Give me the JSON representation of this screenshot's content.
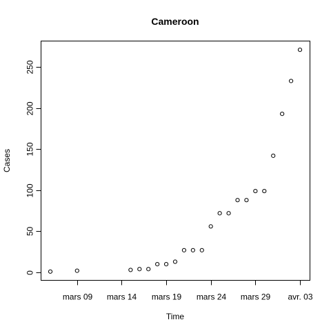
{
  "chart_data": {
    "type": "scatter",
    "title": "Cameroon",
    "xlabel": "Time",
    "ylabel": "Cases",
    "x_axis_type": "date",
    "xlim": [
      "2020-03-06",
      "2020-04-03"
    ],
    "ylim": [
      0,
      272
    ],
    "x_ticks": [
      {
        "date": "2020-03-09",
        "label": "mars 09"
      },
      {
        "date": "2020-03-14",
        "label": "mars 14"
      },
      {
        "date": "2020-03-19",
        "label": "mars 19"
      },
      {
        "date": "2020-03-24",
        "label": "mars 24"
      },
      {
        "date": "2020-03-29",
        "label": "mars 29"
      },
      {
        "date": "2020-04-03",
        "label": "avr. 03"
      }
    ],
    "y_ticks": [
      0,
      50,
      100,
      150,
      200,
      250
    ],
    "grid": false,
    "legend": "none",
    "marker": "open-circle",
    "points": [
      {
        "x": "2020-03-06",
        "y": 1
      },
      {
        "x": "2020-03-09",
        "y": 2
      },
      {
        "x": "2020-03-15",
        "y": 3
      },
      {
        "x": "2020-03-16",
        "y": 4
      },
      {
        "x": "2020-03-17",
        "y": 4
      },
      {
        "x": "2020-03-18",
        "y": 10
      },
      {
        "x": "2020-03-19",
        "y": 10
      },
      {
        "x": "2020-03-20",
        "y": 13
      },
      {
        "x": "2020-03-21",
        "y": 27
      },
      {
        "x": "2020-03-22",
        "y": 27
      },
      {
        "x": "2020-03-23",
        "y": 27
      },
      {
        "x": "2020-03-24",
        "y": 56
      },
      {
        "x": "2020-03-25",
        "y": 72
      },
      {
        "x": "2020-03-26",
        "y": 72
      },
      {
        "x": "2020-03-27",
        "y": 88
      },
      {
        "x": "2020-03-28",
        "y": 88
      },
      {
        "x": "2020-03-29",
        "y": 99
      },
      {
        "x": "2020-03-30",
        "y": 99
      },
      {
        "x": "2020-03-31",
        "y": 142
      },
      {
        "x": "2020-04-01",
        "y": 193
      },
      {
        "x": "2020-04-02",
        "y": 233
      },
      {
        "x": "2020-04-03",
        "y": 271
      }
    ]
  }
}
